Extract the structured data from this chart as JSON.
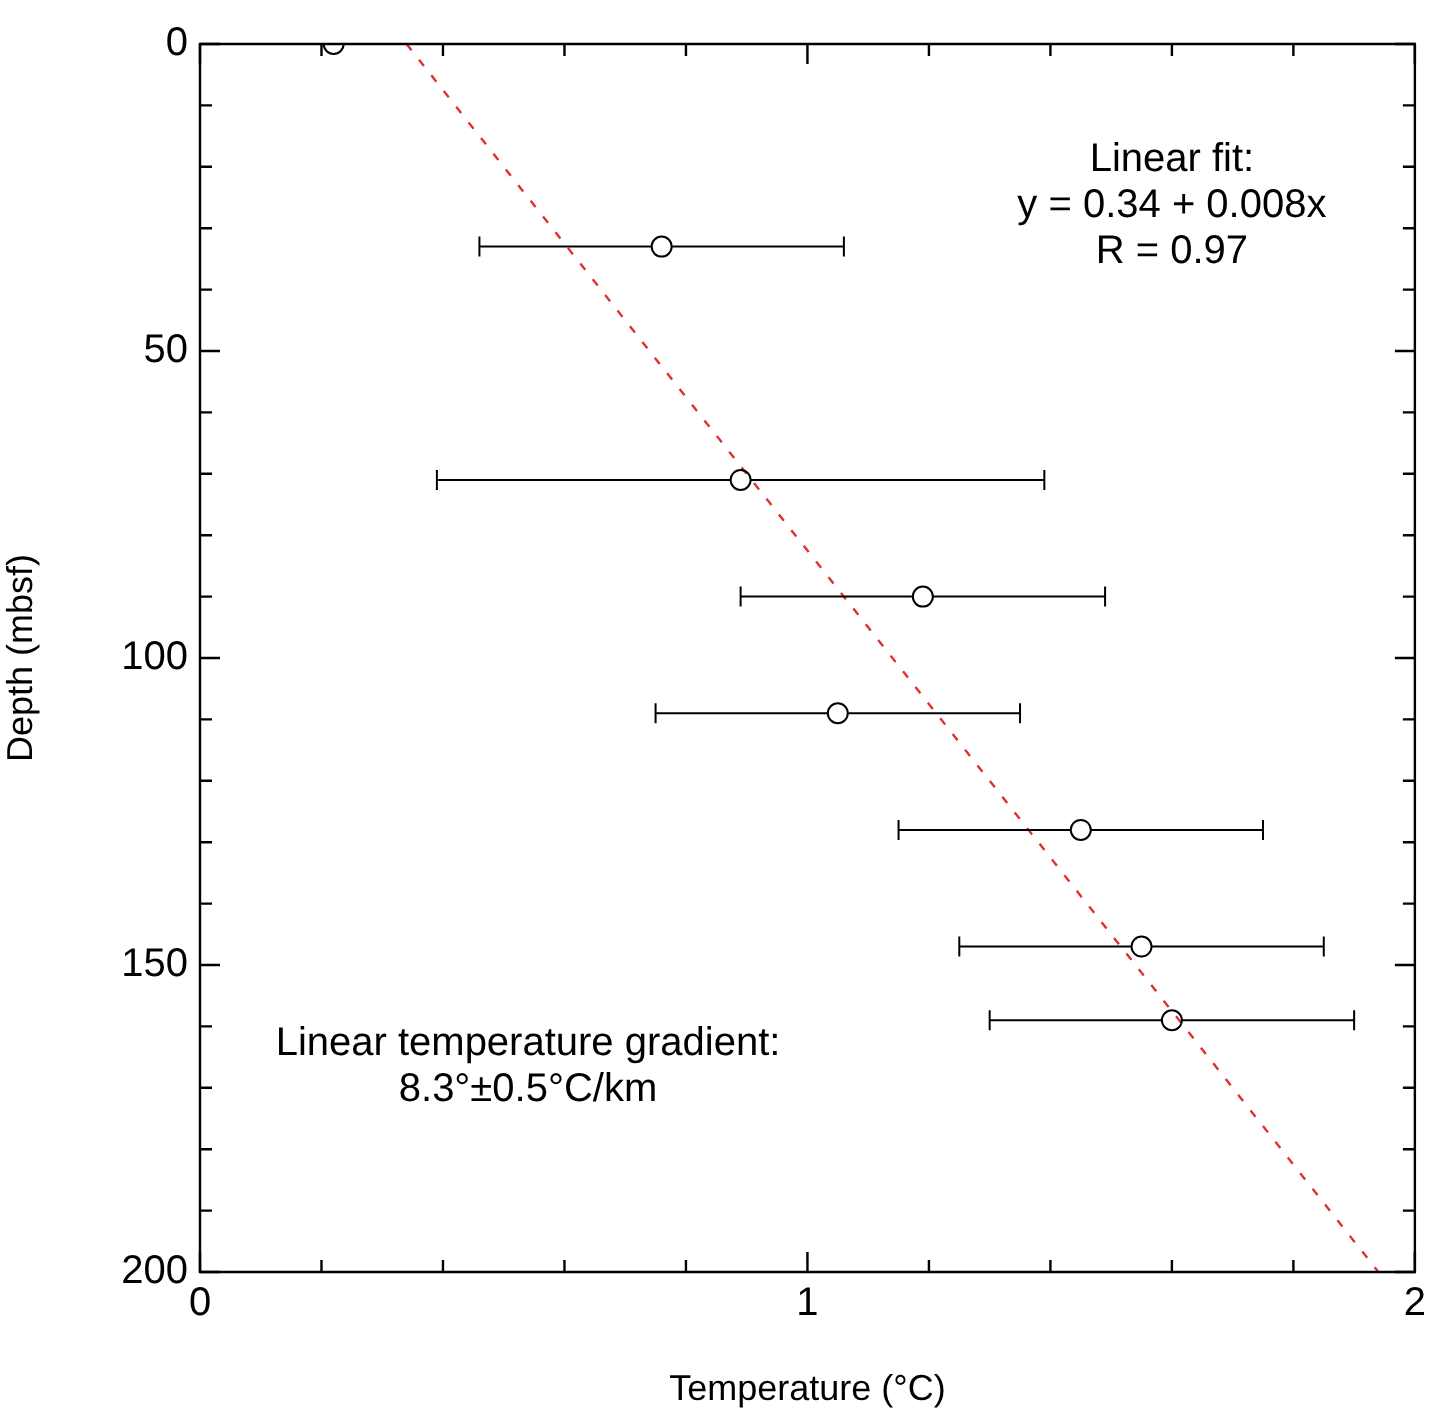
{
  "chart_data": {
    "type": "scatter",
    "xlabel": "Temperature (°C)",
    "ylabel": "Depth (mbsf)",
    "xlim": [
      0,
      2
    ],
    "ylim": [
      200,
      0
    ],
    "xticks": [
      0,
      {
        "value": 0.2,
        "label": null
      },
      {
        "value": 0.4,
        "label": null
      },
      {
        "value": 0.6,
        "label": null
      },
      {
        "value": 0.8,
        "label": null
      },
      1,
      {
        "value": 1.2,
        "label": null
      },
      {
        "value": 1.4,
        "label": null
      },
      {
        "value": 1.6,
        "label": null
      },
      {
        "value": 1.8,
        "label": null
      },
      2
    ],
    "yticks": [
      0,
      {
        "value": 10,
        "label": null
      },
      {
        "value": 20,
        "label": null
      },
      {
        "value": 30,
        "label": null
      },
      {
        "value": 40,
        "label": null
      },
      50,
      {
        "value": 60,
        "label": null
      },
      {
        "value": 70,
        "label": null
      },
      {
        "value": 80,
        "label": null
      },
      {
        "value": 90,
        "label": null
      },
      100,
      {
        "value": 110,
        "label": null
      },
      {
        "value": 120,
        "label": null
      },
      {
        "value": 130,
        "label": null
      },
      {
        "value": 140,
        "label": null
      },
      150,
      {
        "value": 160,
        "label": null
      },
      {
        "value": 170,
        "label": null
      },
      {
        "value": 180,
        "label": null
      },
      {
        "value": 190,
        "label": null
      },
      200
    ],
    "grid": false,
    "legend": false,
    "series": [
      {
        "color": "#000000",
        "marker": "circle",
        "x": [
          0.22,
          0.76,
          0.89,
          1.19,
          1.05,
          1.45,
          1.55,
          1.6
        ],
        "values": [
          0,
          33,
          71,
          90,
          109,
          128,
          147,
          159
        ],
        "xerrors": [
          null,
          0.3,
          0.5,
          0.3,
          0.3,
          0.3,
          0.3,
          0.3
        ]
      },
      {
        "type": "line",
        "color": "#e03030",
        "marker": "none",
        "line_style": "dashed",
        "x": [
          0.34,
          1.94
        ],
        "values": [
          0,
          200
        ]
      }
    ],
    "annotations": [
      "Linear fit:\ny = 0.34 + 0.008x\nR = 0.97",
      "Linear temperature gradient:\n8.3°±0.5°C/km"
    ]
  }
}
